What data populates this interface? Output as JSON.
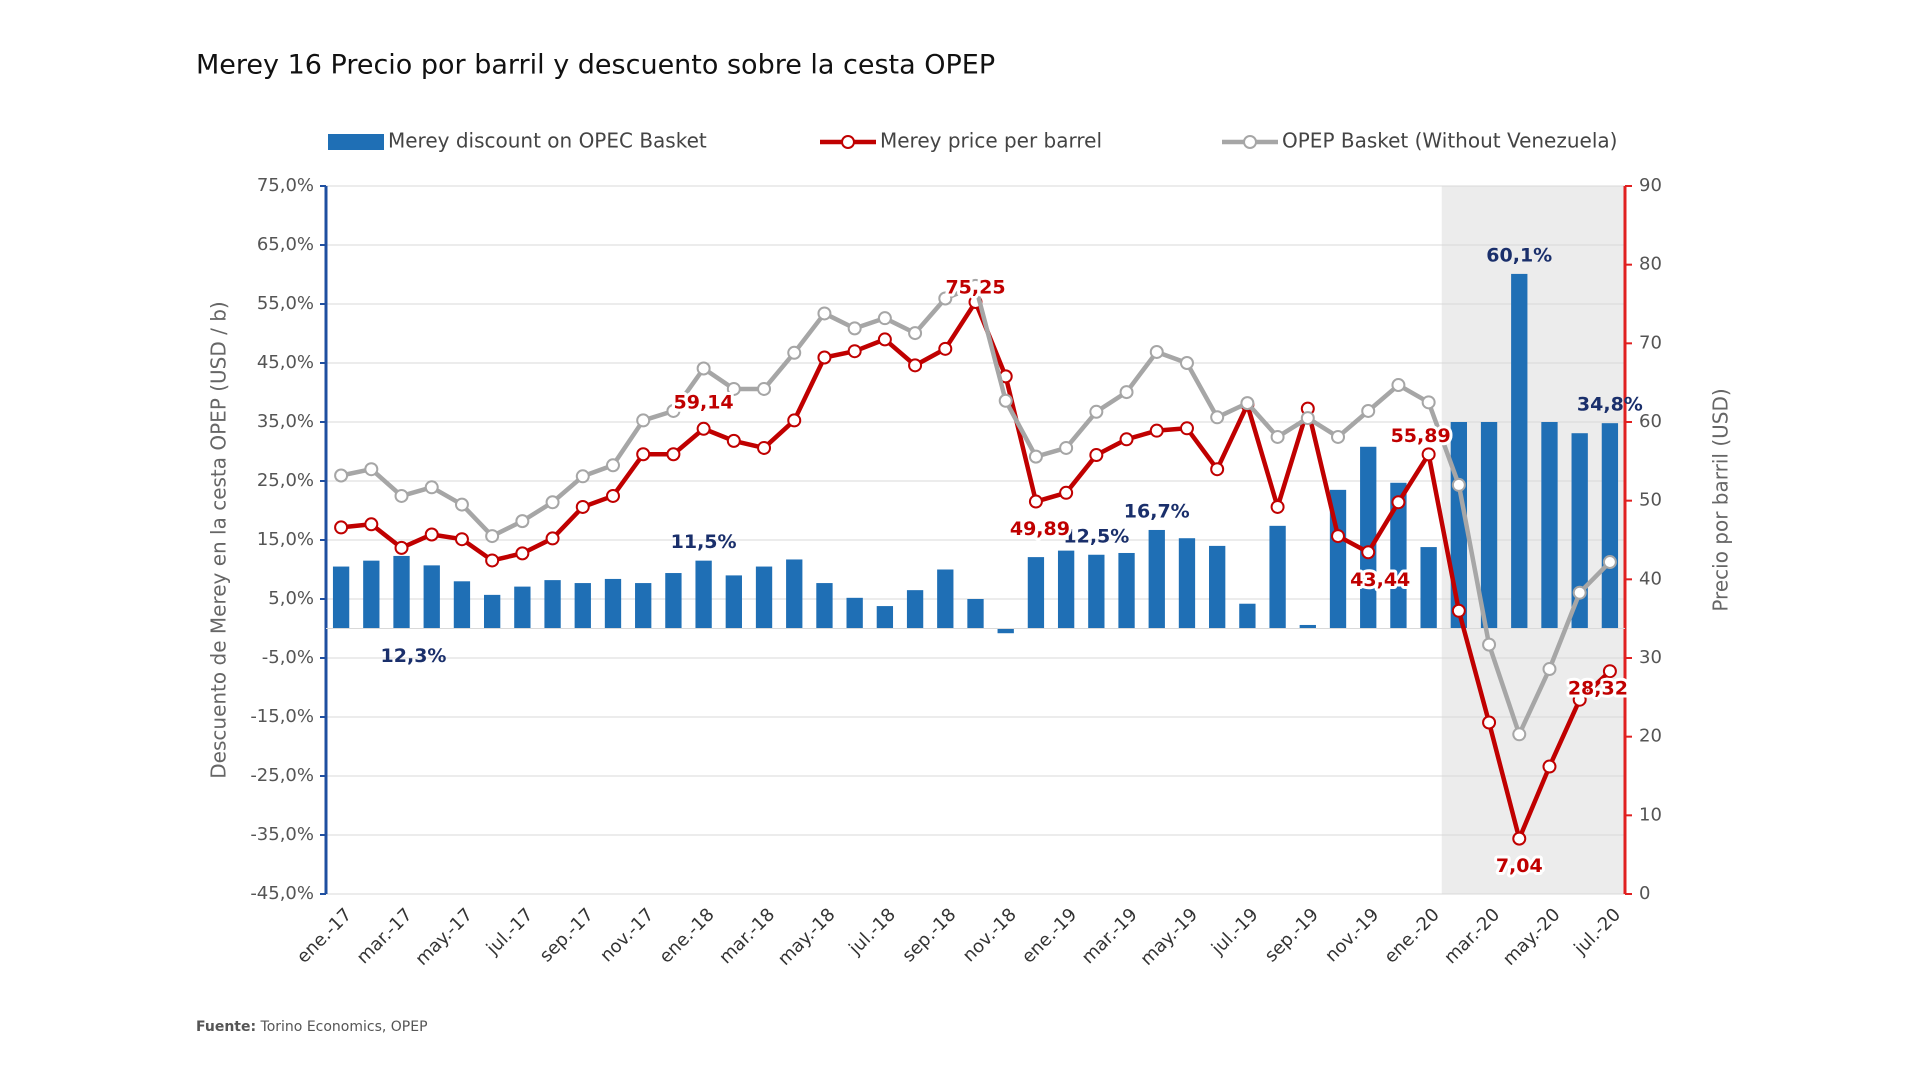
{
  "chart_data": {
    "type": "bar-line",
    "title": "Merey 16 Precio por barril y descuento sobre la cesta OPEP",
    "y_label": "Descuento de Merey en la cesta OPEP (USD / b)",
    "y2_label": "Precio por barril (USD)",
    "source_label": "Fuente:",
    "source": "Torino Economics, OPEP",
    "categories": [
      "ene.-17",
      null,
      "mar.-17",
      null,
      "may.-17",
      null,
      "jul.-17",
      null,
      "sep.-17",
      null,
      "nov.-17",
      null,
      "ene.-18",
      null,
      "mar.-18",
      null,
      "may.-18",
      null,
      "jul.-18",
      null,
      "sep.-18",
      null,
      "nov.-18",
      null,
      "ene.-19",
      null,
      "mar.-19",
      null,
      "may.-19",
      null,
      "jul.-19",
      null,
      "sep.-19",
      null,
      "nov.-19",
      null,
      "ene.-20",
      null,
      "mar.-20",
      null,
      "may.-20",
      null,
      "jul.-20"
    ],
    "series": [
      {
        "name": "Merey discount on OPEC Basket",
        "type": "bar",
        "axis": "y",
        "color": "#1f6fb5",
        "values": [
          10.5,
          11.5,
          12.3,
          10.7,
          8.0,
          5.7,
          7.1,
          8.2,
          7.7,
          8.4,
          7.7,
          9.4,
          11.5,
          9.0,
          10.5,
          11.7,
          7.7,
          5.2,
          3.8,
          6.5,
          10.0,
          5.0,
          -0.8,
          12.1,
          13.2,
          12.5,
          12.8,
          16.7,
          15.3,
          14.0,
          4.2,
          17.4,
          0.6,
          23.5,
          30.8,
          24.7,
          13.8,
          35.0,
          35.0,
          60.1,
          35.0,
          33.1,
          34.8
        ],
        "value_labels": [
          null,
          null,
          "12,3%",
          null,
          null,
          null,
          null,
          null,
          null,
          null,
          null,
          null,
          "11,5%",
          null,
          null,
          null,
          null,
          null,
          null,
          null,
          null,
          null,
          null,
          null,
          null,
          "12,5%",
          null,
          "16,7%",
          null,
          null,
          null,
          null,
          null,
          null,
          null,
          null,
          null,
          null,
          null,
          "60,1%",
          null,
          null,
          "34,8%"
        ]
      },
      {
        "name": "Merey price per barrel",
        "type": "line",
        "axis": "y2",
        "color": "#c00000",
        "values": [
          46.6,
          47.0,
          44.0,
          45.7,
          45.1,
          42.4,
          43.3,
          45.2,
          49.2,
          50.6,
          55.9,
          55.9,
          59.14,
          57.6,
          56.7,
          60.2,
          68.2,
          69.0,
          70.5,
          67.2,
          69.3,
          75.25,
          65.8,
          49.89,
          51.0,
          55.8,
          57.8,
          58.9,
          59.2,
          54.0,
          62.2,
          49.2,
          61.7,
          45.5,
          43.44,
          49.8,
          55.89,
          36.0,
          21.8,
          7.04,
          16.2,
          24.7,
          28.32
        ],
        "value_labels": [
          null,
          null,
          null,
          null,
          null,
          null,
          null,
          null,
          null,
          null,
          null,
          null,
          "59,14",
          null,
          null,
          null,
          null,
          null,
          null,
          null,
          null,
          "75,25",
          null,
          "49,89",
          null,
          null,
          null,
          null,
          null,
          null,
          null,
          null,
          null,
          null,
          "43,44",
          null,
          "55,89",
          null,
          null,
          "7,04",
          null,
          null,
          "28,32"
        ]
      },
      {
        "name": "OPEP Basket (Without Venezuela)",
        "type": "line",
        "axis": "y2",
        "color": "#a6a6a6",
        "values": [
          53.2,
          54.0,
          50.6,
          51.7,
          49.5,
          45.5,
          47.4,
          49.8,
          53.1,
          54.5,
          60.2,
          61.4,
          66.8,
          64.2,
          64.2,
          68.8,
          73.8,
          71.9,
          73.2,
          71.3,
          75.7,
          77.3,
          62.7,
          55.6,
          56.7,
          61.3,
          63.8,
          68.9,
          67.5,
          60.6,
          62.4,
          58.1,
          60.5,
          58.1,
          61.4,
          64.7,
          62.5,
          52.0,
          31.7,
          20.3,
          28.6,
          38.3,
          42.2
        ]
      }
    ],
    "ylim": [
      -45,
      75
    ],
    "yticks": [
      {
        "value": -45,
        "label": "-45,0%"
      },
      {
        "value": -35,
        "label": "-35,0%"
      },
      {
        "value": -25,
        "label": "-25,0%"
      },
      {
        "value": -15,
        "label": "-15,0%"
      },
      {
        "value": -5,
        "label": "-5,0%"
      },
      {
        "value": 5,
        "label": "5,0%"
      },
      {
        "value": 15,
        "label": "15,0%"
      },
      {
        "value": 25,
        "label": "25,0%"
      },
      {
        "value": 35,
        "label": "35,0%"
      },
      {
        "value": 45,
        "label": "45,0%"
      },
      {
        "value": 55,
        "label": "55,0%"
      },
      {
        "value": 65,
        "label": "65,0%"
      },
      {
        "value": 75,
        "label": "75,0%"
      }
    ],
    "y2lim": [
      0,
      90
    ],
    "y2ticks": [
      0,
      10,
      20,
      30,
      40,
      50,
      60,
      70,
      80,
      90
    ],
    "grid": true,
    "legend": "top"
  }
}
